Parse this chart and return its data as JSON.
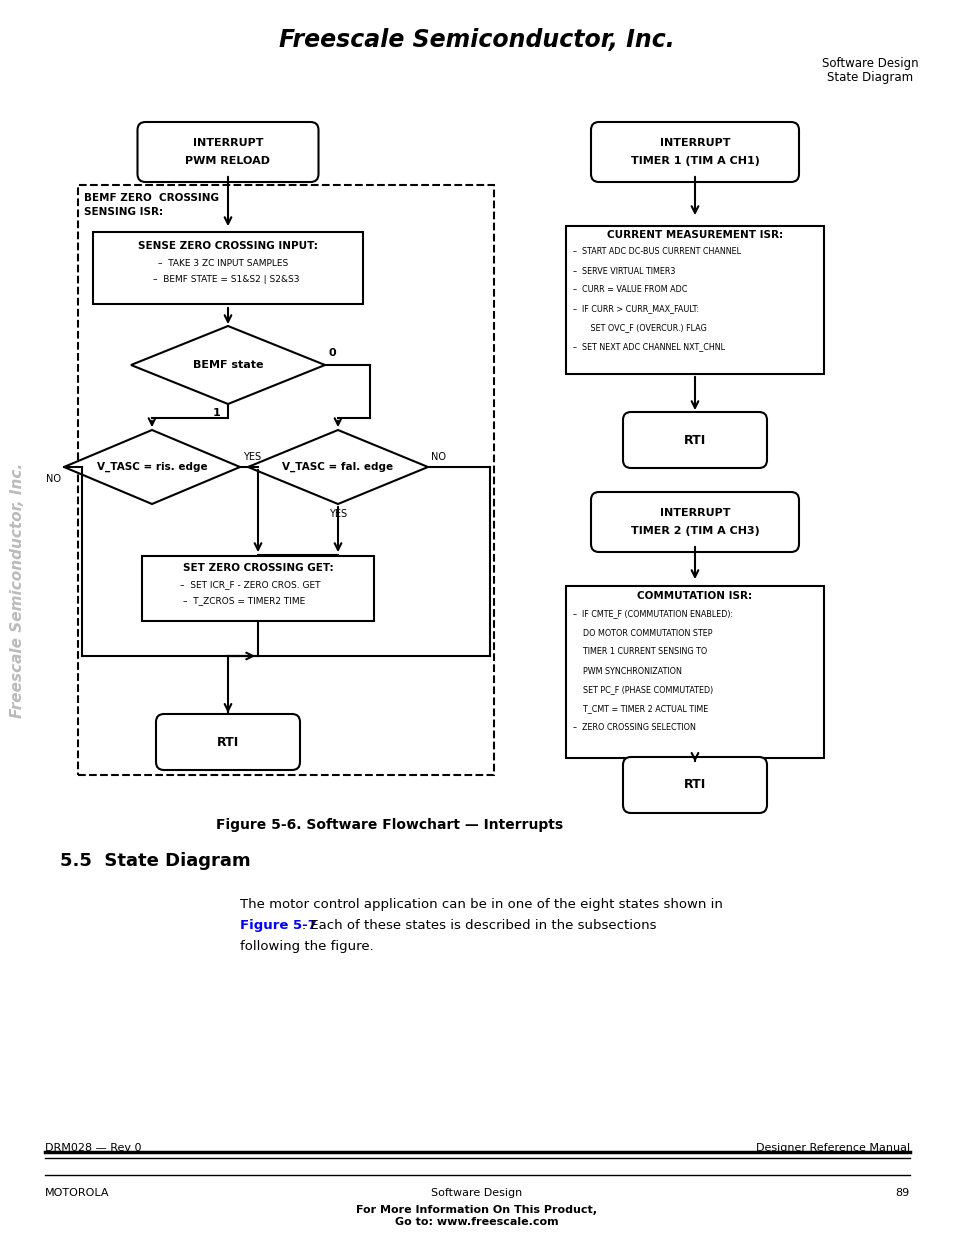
{
  "title": "Freescale Semiconductor, Inc.",
  "subtitle_right1": "Software Design",
  "subtitle_right2": "State Diagram",
  "figure_caption": "Figure 5-6. Software Flowchart — Interrupts",
  "section_title": "5.5  State Diagram",
  "body_text_line1": "The motor control application can be in one of the eight states shown in",
  "body_text_line2_blue": "Figure 5-7",
  "body_text_line2_rest": ". Each of these states is described in the subsections",
  "body_text_line3": "following the figure.",
  "footer_left": "DRM028 — Rev 0",
  "footer_right": "Designer Reference Manual",
  "footer2_left": "MOTOROLA",
  "footer2_center": "Software Design",
  "footer2_page": "89",
  "footer2_bold": "For More Information On This Product,\nGo to: www.freescale.com",
  "sidebar_text": "Freescale Semiconductor, Inc.",
  "pwm_line1": "INTERRUPT",
  "pwm_line2": "PWM RELOAD",
  "bemf_label1": "BEMF ZERO  CROSSING",
  "bemf_label2": "SENSING ISR:",
  "szc_title": "SENSE ZERO CROSSING INPUT:",
  "szc_line1": "–  TAKE 3 ZC INPUT SAMPLES",
  "szc_line2": "–  BEMF STATE = S1&S2 | S2&S3",
  "bemf_diamond": "BEMF state",
  "vtl_diamond": "V_TASC = ris. edge",
  "vtr_diamond": "V_TASC = fal. edge",
  "szg_title": "SET ZERO CROSSING GET:",
  "szg_line1": "–  SET ICR_F - ZERO CROS. GET",
  "szg_line2": "–  T_ZCROS = TIMER2 TIME",
  "rti": "RTI",
  "tim1_line1": "INTERRUPT",
  "tim1_line2": "TIMER 1 (TIM A CH1)",
  "cm_title": "CURRENT MEASUREMENT ISR:",
  "cm_lines": [
    "–  START ADC DC-BUS CURRENT CHANNEL",
    "–  SERVE VIRTUAL TIMER3",
    "–  CURR = VALUE FROM ADC",
    "–  IF CURR > CURR_MAX_FAULT:",
    "       SET OVC_F (OVERCUR.) FLAG",
    "–  SET NEXT ADC CHANNEL NXT_CHNL"
  ],
  "tim2_line1": "INTERRUPT",
  "tim2_line2": "TIMER 2 (TIM A CH3)",
  "co_title": "COMMUTATION ISR:",
  "co_lines": [
    "–  IF CMTE_F (COMMUTATION ENABLED):",
    "    DO MOTOR COMMUTATION STEP",
    "    TIMER 1 CURRENT SENSING TO",
    "    PWM SYNCHRONIZATION",
    "    SET PC_F (PHASE COMMUTATED)",
    "    T_CMT = TIMER 2 ACTUAL TIME",
    "–  ZERO CROSSING SELECTION"
  ],
  "bg_color": "#ffffff"
}
